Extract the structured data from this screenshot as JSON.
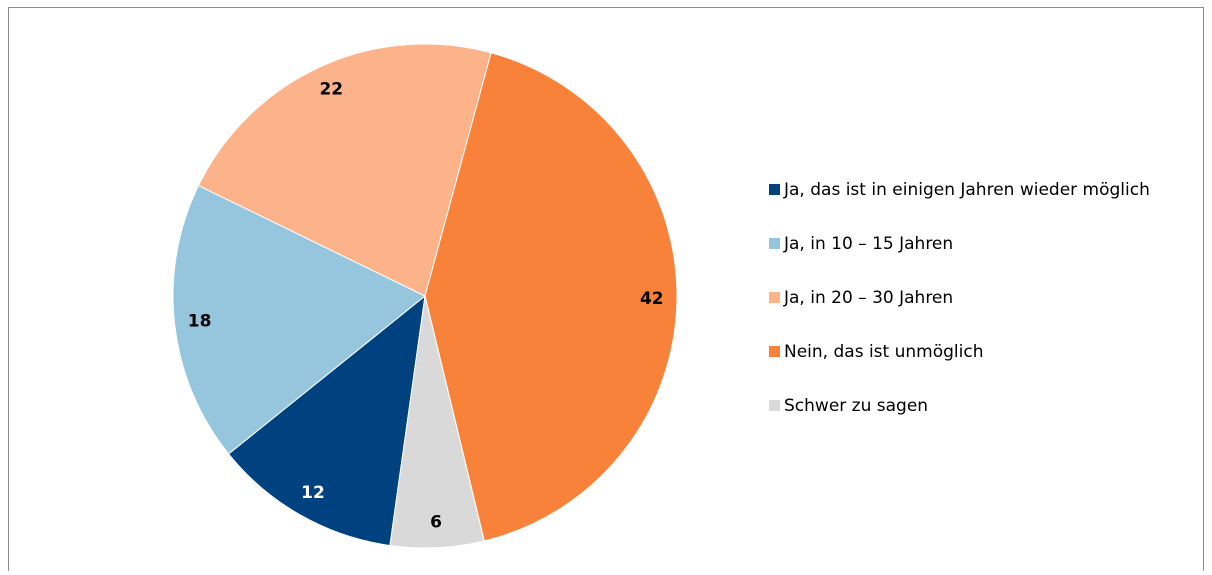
{
  "chart_data": {
    "type": "pie",
    "categories": [
      "Ja, das ist in einigen Jahren wieder möglich",
      "Ja, in 10 – 15 Jahren",
      "Ja, in 20 – 30 Jahren",
      "Nein, das ist unmöglich",
      "Schwer zu sagen"
    ],
    "values": [
      12,
      18,
      22,
      42,
      6
    ],
    "colors": [
      "#00427f",
      "#96c5de",
      "#fcb38a",
      "#f9823b",
      "#d9d9d9"
    ],
    "label_colors": [
      "#ffffff",
      "#000000",
      "#000000",
      "#000000",
      "#000000"
    ],
    "legend": "right"
  }
}
